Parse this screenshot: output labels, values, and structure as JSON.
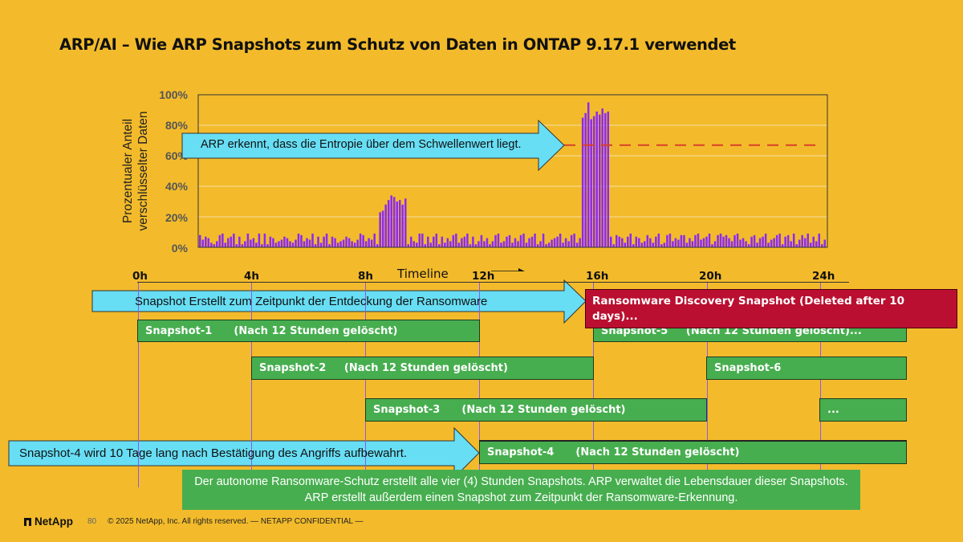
{
  "slide": {
    "title": "ARP/AI – Wie ARP Snapshots zum Schutz von Daten in ONTAP 9.17.1 verwendet",
    "colors": {
      "background": "#F3BB2B",
      "bars": "#8B2BF0",
      "threshold": "#D9402B",
      "callout": "#67DEF4",
      "snapshot_green": "#47AE4F",
      "discovery_red": "#BA0F30"
    }
  },
  "chart_data": {
    "type": "bar",
    "title": "",
    "xlabel": "Timeline",
    "ylabel": "Prozentualer Anteil verschlüsselter Daten",
    "ylim": [
      0,
      100
    ],
    "yticks": [
      "100%",
      "80%",
      "60%",
      "40%",
      "20%",
      "0%"
    ],
    "grid": true,
    "threshold": 67,
    "values": [
      8,
      5,
      7,
      6,
      3,
      2,
      4,
      8,
      9,
      3,
      6,
      7,
      9,
      2,
      7,
      2,
      4,
      9,
      5,
      6,
      3,
      9,
      2,
      9,
      2,
      7,
      6,
      3,
      4,
      5,
      7,
      6,
      4,
      3,
      5,
      9,
      8,
      4,
      6,
      5,
      9,
      2,
      7,
      3,
      7,
      9,
      2,
      7,
      6,
      3,
      4,
      5,
      7,
      6,
      4,
      3,
      5,
      9,
      8,
      4,
      6,
      5,
      9,
      2,
      23,
      24,
      28,
      31,
      34,
      33,
      30,
      31,
      28,
      32,
      2,
      7,
      4,
      3,
      9,
      9,
      2,
      7,
      3,
      7,
      9,
      2,
      7,
      3,
      6,
      4,
      8,
      9,
      3,
      6,
      7,
      9,
      2,
      7,
      2,
      4,
      8,
      4,
      6,
      2,
      4,
      8,
      9,
      3,
      4,
      7,
      8,
      3,
      6,
      4,
      8,
      9,
      3,
      6,
      7,
      9,
      2,
      4,
      9,
      2,
      3,
      5,
      6,
      7,
      9,
      3,
      6,
      4,
      8,
      9,
      3,
      6,
      85,
      88,
      95,
      84,
      86,
      89,
      87,
      91,
      88,
      89,
      7,
      2,
      8,
      7,
      6,
      3,
      7,
      9,
      2,
      7,
      6,
      3,
      4,
      8,
      6,
      3,
      7,
      9,
      2,
      3,
      8,
      9,
      4,
      6,
      5,
      8,
      8,
      3,
      6,
      4,
      8,
      9,
      5,
      6,
      7,
      9,
      2,
      4,
      8,
      9,
      7,
      8,
      6,
      4,
      8,
      9,
      5,
      6,
      4,
      2,
      7,
      8,
      3,
      6,
      7,
      9,
      3,
      5,
      6,
      8,
      9,
      2,
      7,
      8,
      4,
      9,
      2,
      5,
      8,
      6,
      9,
      3,
      7,
      4,
      9,
      2,
      5
    ],
    "annotations": [
      "ARP erkennt, dass die Entropie über dem Schwellenwert liegt."
    ]
  },
  "timeline": {
    "label": "Timeline",
    "ticks": [
      "0h",
      "4h",
      "8h",
      "12h",
      "16h",
      "20h",
      "24h"
    ]
  },
  "callouts": {
    "discovery": "Snapshot Erstellt zum Zeitpunkt der Entdeckung der Ransomware",
    "retention": "Snapshot-4 wird 10 Tage lang nach Bestätigung des Angriffs aufbewahrt."
  },
  "discovery_snapshot": {
    "label": "Ransomware Discovery Snapshot      (Deleted after 10 days)..."
  },
  "snapshots": [
    {
      "name": "Snapshot-1",
      "note": "(Nach 12 Stunden gelöscht)",
      "text": "Snapshot-1      (Nach 12 Stunden gelöscht)",
      "start_h": 0,
      "end_h": 12
    },
    {
      "name": "Snapshot-2",
      "note": "(Nach 12 Stunden gelöscht)",
      "text": "Snapshot-2     (Nach 12 Stunden gelöscht)",
      "start_h": 4,
      "end_h": 16
    },
    {
      "name": "Snapshot-3",
      "note": "(Nach 12 Stunden gelöscht)",
      "text": "Snapshot-3      (Nach 12 Stunden gelöscht)",
      "start_h": 8,
      "end_h": 20
    },
    {
      "name": "Snapshot-4",
      "note": "(Nach 12 Stunden gelöscht)",
      "text": "Snapshot-4      (Nach 12 Stunden gelöscht)",
      "start_h": 12,
      "end_h": 24
    },
    {
      "name": "Snapshot-5",
      "note": "(Nach 12 Stunden gelöscht)...",
      "text": "Snapshot-5     (Nach 12 Stunden gelöscht)...",
      "start_h": 16,
      "end_h": 28
    },
    {
      "name": "Snapshot-6",
      "note": "",
      "text": "Snapshot-6",
      "start_h": 20,
      "end_h": 28
    },
    {
      "name": "...",
      "note": "",
      "text": "...",
      "start_h": 24,
      "end_h": 28
    }
  ],
  "info": {
    "text": "Der autonome Ransomware-Schutz erstellt alle vier (4) Stunden Snapshots. ARP verwaltet die Lebensdauer dieser Snapshots. ARP erstellt außerdem einen Snapshot zum Zeitpunkt der Ransomware-Erkennung."
  },
  "footer": {
    "logo": "NetApp",
    "page": "80",
    "copyright": "© 2025 NetApp, Inc. All rights reserved.  — NETAPP CONFIDENTIAL —"
  }
}
